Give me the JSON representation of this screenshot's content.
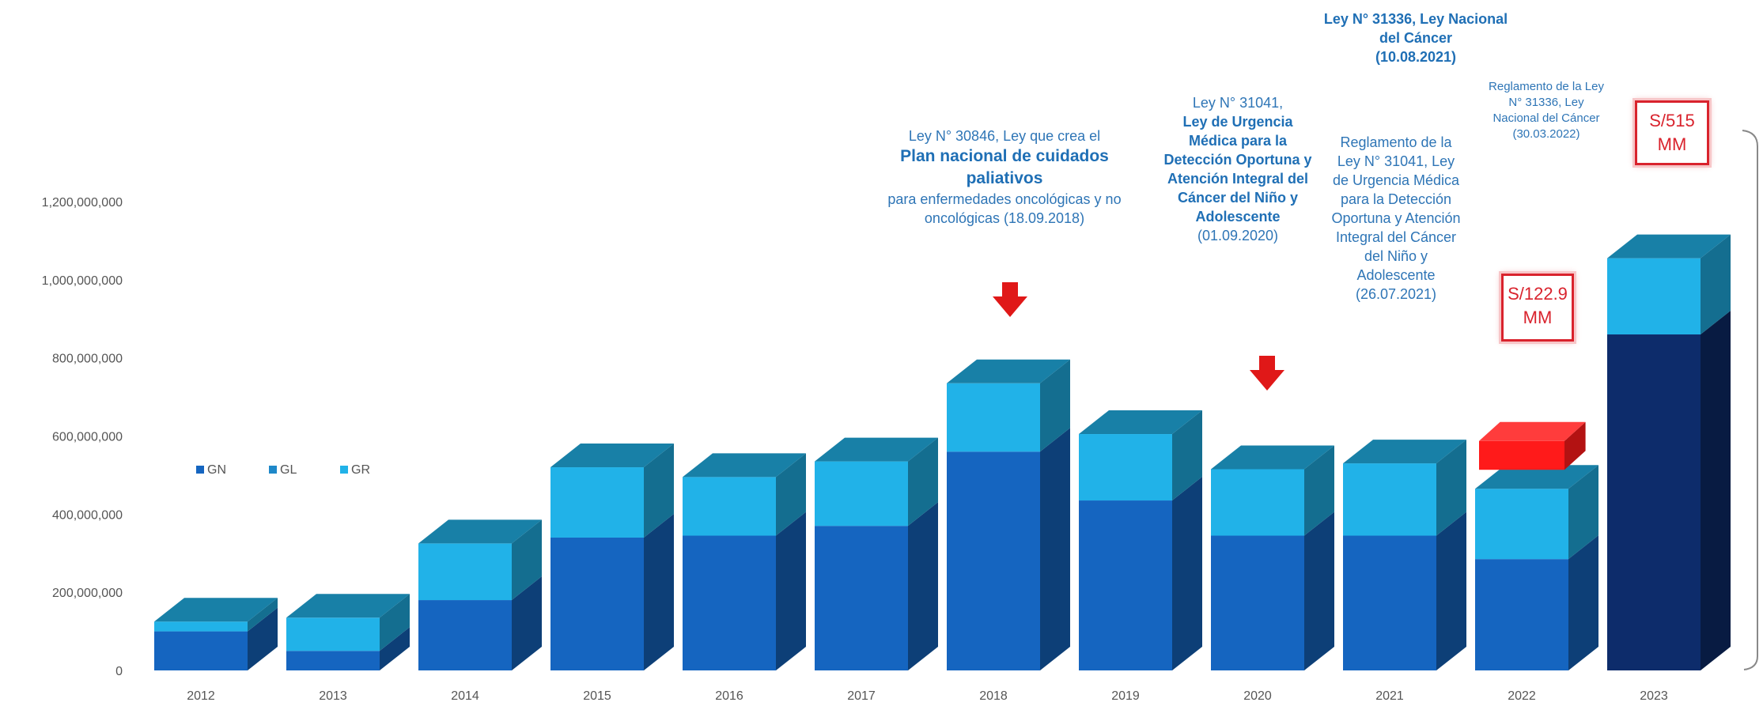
{
  "chart_data": {
    "type": "bar",
    "stacked": true,
    "style": "3d",
    "categories": [
      "2012",
      "2013",
      "2014",
      "2015",
      "2016",
      "2017",
      "2018",
      "2019",
      "2020",
      "2021",
      "2022",
      "2023"
    ],
    "series": [
      {
        "name": "GN",
        "color": "#1565c0",
        "values": [
          100000000,
          50000000,
          180000000,
          340000000,
          345000000,
          370000000,
          560000000,
          435000000,
          345000000,
          345000000,
          285000000,
          860000000
        ]
      },
      {
        "name": "GL",
        "color": "#1e88c9",
        "values": [
          0,
          0,
          0,
          0,
          0,
          0,
          0,
          0,
          0,
          0,
          0,
          0
        ]
      },
      {
        "name": "GR",
        "color": "#21b2e8",
        "values": [
          25000000,
          85000000,
          145000000,
          180000000,
          150000000,
          165000000,
          175000000,
          170000000,
          170000000,
          185000000,
          180000000,
          195000000
        ]
      }
    ],
    "yticks": [
      "0",
      "200,000,000",
      "400,000,000",
      "600,000,000",
      "800,000,000",
      "1,000,000,000",
      "1,200,000,000"
    ],
    "ylim": [
      0,
      1200000000
    ],
    "legend_position": "left",
    "highlight_2023_color": "#0d2c6b",
    "increment_2022_value": 122900000,
    "increment_2022_color": "#ff1a1a"
  },
  "annotations": {
    "a2018": {
      "line1": "Ley N° 30846, Ley que crea el",
      "bold": "Plan nacional de cuidados paliativos",
      "line3": "para enfermedades oncológicas y no oncológicas (18.09.2018)"
    },
    "a2020": {
      "pre": "Ley N° 31041,",
      "bold": "Ley de Urgencia Médica para la Detección Oportuna y Atención Integral del Cáncer del Niño y Adolescente",
      "post": "(01.09.2020)"
    },
    "a2021top": {
      "bold": "Ley N° 31336, Ley Nacional del Cáncer",
      "date": "(10.08.2021)"
    },
    "a2021": {
      "text": "Reglamento de la Ley N° 31041, Ley de Urgencia Médica para la Detección Oportuna y Atención Integral del Cáncer del Niño y Adolescente (26.07.2021)"
    },
    "a2023": {
      "text": "Reglamento de la Ley N° 31336, Ley Nacional del Cáncer (30.03.2022)"
    }
  },
  "callouts": {
    "c2022": {
      "line1": "S/122.9",
      "line2": "MM"
    },
    "c2023": {
      "line1": "S/515",
      "line2": "MM"
    }
  }
}
